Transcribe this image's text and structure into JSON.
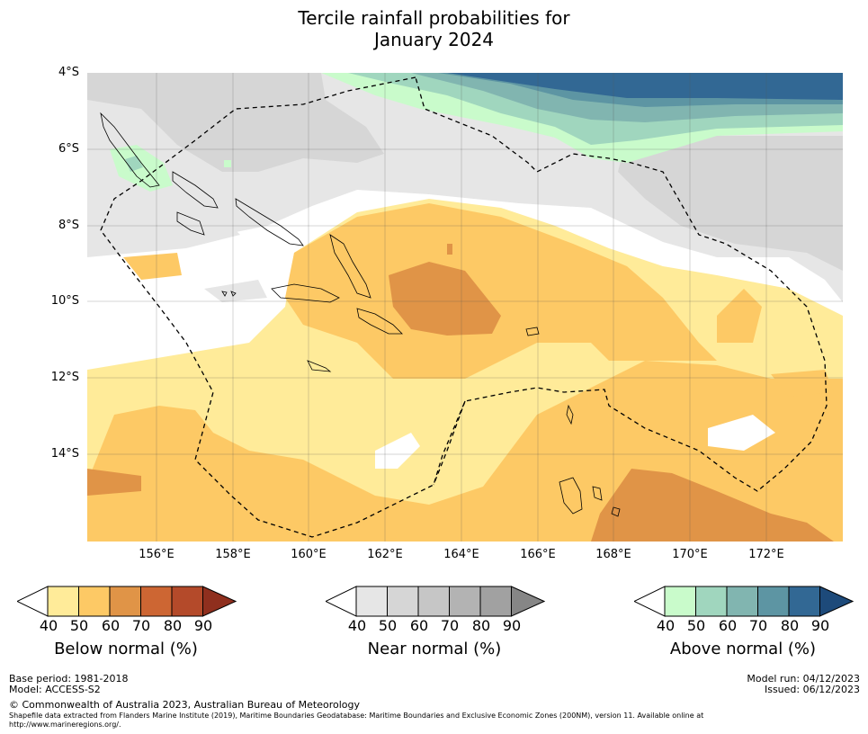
{
  "title_line1": "Tercile rainfall probabilities for",
  "title_line2": "January 2024",
  "lat_labels": [
    "4°S",
    "6°S",
    "8°S",
    "10°S",
    "12°S",
    "14°S"
  ],
  "lon_labels": [
    "156°E",
    "158°E",
    "160°E",
    "162°E",
    "164°E",
    "166°E",
    "168°E",
    "170°E",
    "172°E"
  ],
  "colorbars": [
    {
      "title": "Below normal (%)",
      "ticks": [
        "40",
        "50",
        "60",
        "70",
        "80",
        "90"
      ],
      "colors": [
        "#ffeb99",
        "#fdc965",
        "#e09447",
        "#cd6633",
        "#b44a2a",
        "#8f2f1e"
      ]
    },
    {
      "title": "Near normal (%)",
      "ticks": [
        "40",
        "50",
        "60",
        "70",
        "80",
        "90"
      ],
      "colors": [
        "#e6e6e6",
        "#d6d6d6",
        "#c6c6c6",
        "#b3b3b3",
        "#a1a1a1",
        "#868686"
      ]
    },
    {
      "title": "Above normal (%)",
      "ticks": [
        "40",
        "50",
        "60",
        "70",
        "80",
        "90"
      ],
      "colors": [
        "#c9fbcb",
        "#a0d6be",
        "#81b5b0",
        "#5d95a3",
        "#326894",
        "#1d4a7a"
      ]
    }
  ],
  "footer": {
    "base_period": "Base period: 1981-2018",
    "model": "Model: ACCESS-S2",
    "copyright": "© Commonwealth of Australia 2023, Australian Bureau of Meteorology",
    "shapefile_line1": "Shapefile data extracted from Flanders Marine Institute (2019), Maritime Boundaries Geodatabase: Maritime Boundaries and Exclusive Economic Zones (200NM), version 11. Available online at",
    "shapefile_line2": "http://www.marineregions.org/.",
    "model_run": "Model run: 04/12/2023",
    "issued": "Issued: 06/12/2023"
  }
}
